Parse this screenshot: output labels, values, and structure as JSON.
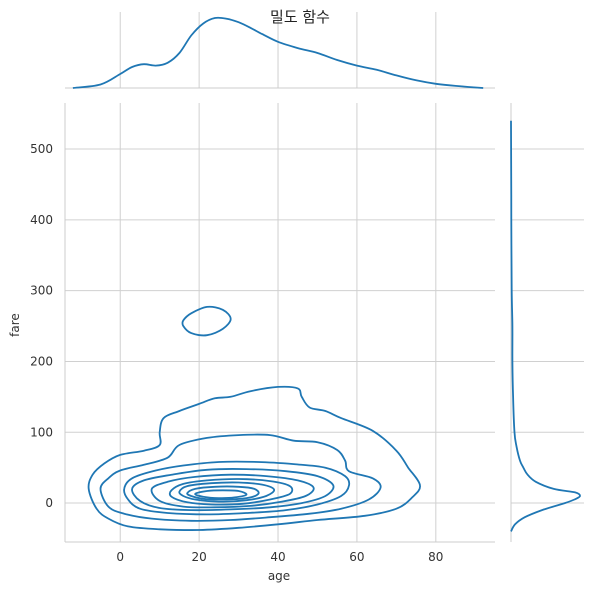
{
  "chart_data": {
    "type": "kde",
    "title": "밀도 함수",
    "xlabel": "age",
    "ylabel": "fare",
    "xlim": [
      -14,
      95
    ],
    "ylim": [
      -55,
      565
    ],
    "x_ticks": [
      0,
      20,
      40,
      60,
      80
    ],
    "y_ticks": [
      0,
      100,
      200,
      300,
      400,
      500
    ],
    "grid": true,
    "color": "#1f77b4",
    "marginal_x": {
      "x": [
        -12,
        -5,
        0,
        3,
        6,
        9,
        12,
        15,
        18,
        21,
        24,
        27,
        30,
        33,
        36,
        40,
        45,
        50,
        55,
        60,
        65,
        70,
        75,
        80,
        85,
        92
      ],
      "density": [
        0.0,
        0.05,
        0.2,
        0.3,
        0.34,
        0.32,
        0.36,
        0.5,
        0.75,
        0.92,
        1.0,
        0.99,
        0.94,
        0.86,
        0.77,
        0.66,
        0.57,
        0.5,
        0.4,
        0.32,
        0.26,
        0.18,
        0.11,
        0.06,
        0.03,
        0.0
      ]
    },
    "marginal_y": {
      "y": [
        -40,
        -30,
        -20,
        -10,
        0,
        5,
        10,
        15,
        20,
        30,
        40,
        50,
        60,
        80,
        100,
        150,
        200,
        250,
        300,
        400,
        500,
        540
      ],
      "density": [
        0.0,
        0.06,
        0.2,
        0.45,
        0.78,
        0.92,
        1.0,
        0.93,
        0.62,
        0.36,
        0.24,
        0.18,
        0.13,
        0.08,
        0.05,
        0.03,
        0.02,
        0.02,
        0.01,
        0.005,
        0.002,
        0.0
      ]
    },
    "contours": [
      {
        "level": 1,
        "points": [
          [
            16,
            258
          ],
          [
            18,
            268
          ],
          [
            22,
            277
          ],
          [
            26,
            273
          ],
          [
            28,
            260
          ],
          [
            26,
            246
          ],
          [
            22,
            237
          ],
          [
            18,
            240
          ],
          [
            16,
            250
          ]
        ]
      },
      {
        "level": 1,
        "points": [
          [
            -8,
            20
          ],
          [
            -7,
            40
          ],
          [
            -4,
            56
          ],
          [
            0,
            68
          ],
          [
            6,
            74
          ],
          [
            10,
            82
          ],
          [
            10,
            100
          ],
          [
            11,
            120
          ],
          [
            15,
            130
          ],
          [
            20,
            140
          ],
          [
            24,
            148
          ],
          [
            28,
            150
          ],
          [
            33,
            158
          ],
          [
            40,
            164
          ],
          [
            45,
            162
          ],
          [
            46,
            150
          ],
          [
            48,
            135
          ],
          [
            52,
            130
          ],
          [
            56,
            120
          ],
          [
            64,
            102
          ],
          [
            70,
            74
          ],
          [
            73,
            50
          ],
          [
            76,
            25
          ],
          [
            74,
            8
          ],
          [
            70,
            -8
          ],
          [
            62,
            -18
          ],
          [
            50,
            -24
          ],
          [
            40,
            -30
          ],
          [
            30,
            -35
          ],
          [
            20,
            -38
          ],
          [
            10,
            -37
          ],
          [
            2,
            -33
          ],
          [
            -3,
            -22
          ],
          [
            -6,
            -8
          ]
        ]
      },
      {
        "level": 2,
        "points": [
          [
            -5,
            20
          ],
          [
            -3,
            35
          ],
          [
            0,
            46
          ],
          [
            6,
            54
          ],
          [
            12,
            64
          ],
          [
            15,
            82
          ],
          [
            22,
            92
          ],
          [
            30,
            96
          ],
          [
            38,
            96
          ],
          [
            44,
            88
          ],
          [
            50,
            86
          ],
          [
            55,
            75
          ],
          [
            57,
            60
          ],
          [
            58,
            45
          ],
          [
            64,
            35
          ],
          [
            66,
            22
          ],
          [
            63,
            5
          ],
          [
            56,
            -8
          ],
          [
            48,
            -15
          ],
          [
            38,
            -20
          ],
          [
            28,
            -24
          ],
          [
            18,
            -25
          ],
          [
            8,
            -22
          ],
          [
            1,
            -15
          ],
          [
            -3,
            -5
          ]
        ]
      },
      {
        "level": 3,
        "points": [
          [
            1,
            20
          ],
          [
            3,
            35
          ],
          [
            9,
            46
          ],
          [
            16,
            53
          ],
          [
            25,
            58
          ],
          [
            35,
            58
          ],
          [
            44,
            55
          ],
          [
            52,
            50
          ],
          [
            57,
            38
          ],
          [
            58,
            25
          ],
          [
            56,
            10
          ],
          [
            50,
            -2
          ],
          [
            42,
            -10
          ],
          [
            32,
            -14
          ],
          [
            22,
            -16
          ],
          [
            12,
            -14
          ],
          [
            5,
            -8
          ],
          [
            2,
            5
          ]
        ]
      },
      {
        "level": 4,
        "points": [
          [
            3,
            20
          ],
          [
            6,
            32
          ],
          [
            13,
            40
          ],
          [
            22,
            47
          ],
          [
            32,
            48
          ],
          [
            42,
            45
          ],
          [
            50,
            38
          ],
          [
            54,
            25
          ],
          [
            52,
            10
          ],
          [
            46,
            0
          ],
          [
            38,
            -6
          ],
          [
            28,
            -9
          ],
          [
            18,
            -10
          ],
          [
            10,
            -7
          ],
          [
            5,
            3
          ]
        ]
      },
      {
        "level": 5,
        "points": [
          [
            8,
            20
          ],
          [
            12,
            30
          ],
          [
            19,
            37
          ],
          [
            28,
            40
          ],
          [
            37,
            38
          ],
          [
            45,
            32
          ],
          [
            49,
            22
          ],
          [
            47,
            10
          ],
          [
            41,
            2
          ],
          [
            33,
            -4
          ],
          [
            24,
            -6
          ],
          [
            16,
            -5
          ],
          [
            10,
            3
          ]
        ]
      },
      {
        "level": 6,
        "points": [
          [
            13,
            18
          ],
          [
            16,
            27
          ],
          [
            22,
            32
          ],
          [
            30,
            34
          ],
          [
            38,
            31
          ],
          [
            43,
            24
          ],
          [
            43,
            13
          ],
          [
            38,
            5
          ],
          [
            31,
            -1
          ],
          [
            23,
            -2
          ],
          [
            17,
            1
          ],
          [
            13,
            9
          ]
        ]
      },
      {
        "level": 7,
        "points": [
          [
            15,
            16
          ],
          [
            17,
            24
          ],
          [
            23,
            28
          ],
          [
            30,
            29
          ],
          [
            36,
            26
          ],
          [
            39,
            19
          ],
          [
            37,
            10
          ],
          [
            32,
            4
          ],
          [
            25,
            2
          ],
          [
            19,
            5
          ],
          [
            16,
            10
          ]
        ]
      },
      {
        "level": 8,
        "points": [
          [
            17,
            14
          ],
          [
            19,
            20
          ],
          [
            24,
            23
          ],
          [
            30,
            23
          ],
          [
            34,
            20
          ],
          [
            35,
            13
          ],
          [
            32,
            7
          ],
          [
            26,
            5
          ],
          [
            21,
            6
          ],
          [
            18,
            10
          ]
        ]
      },
      {
        "level": 9,
        "points": [
          [
            19,
            13
          ],
          [
            22,
            17
          ],
          [
            26,
            18
          ],
          [
            30,
            17
          ],
          [
            32,
            12
          ],
          [
            29,
            8
          ],
          [
            25,
            7
          ],
          [
            21,
            9
          ]
        ]
      }
    ]
  }
}
